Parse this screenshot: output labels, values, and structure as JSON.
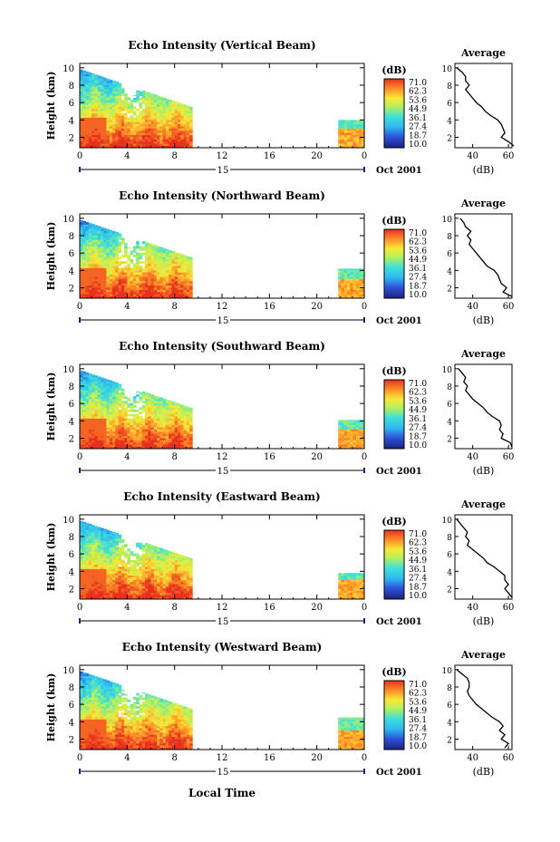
{
  "figure": {
    "panel_ylabel": "Height (km)",
    "x_axis_label": "Local Time",
    "date_label": "Oct 2001",
    "day_label": "15",
    "colorbar_unit": "(dB)",
    "colorbar_ticks": [
      "71.0",
      "62.3",
      "53.6",
      "44.9",
      "36.1",
      "27.4",
      "18.7",
      "10.0"
    ],
    "x_ticks": [
      "0",
      "4",
      "8",
      "12",
      "16",
      "20",
      "0"
    ],
    "y_ticks": [
      "10",
      "8",
      "6",
      "4",
      "2"
    ],
    "avg_title": "Average",
    "avg_xlabel": "(dB)",
    "avg_x_ticks": [
      "40",
      "60"
    ]
  },
  "chart_data": [
    {
      "type": "heatmap",
      "title": "Echo Intensity (Vertical Beam)",
      "xlabel": "Local Time",
      "ylabel": "Height (km)",
      "xlim": [
        0,
        24
      ],
      "ylim": [
        0.8,
        10.5
      ],
      "colorbar": {
        "label": "(dB)",
        "min": 10.0,
        "max": 71.0
      },
      "data_segments": [
        {
          "x": [
            0,
            9.5
          ],
          "top_km": 9.8
        },
        {
          "x": [
            21.8,
            24
          ],
          "top_km": 4.0
        }
      ],
      "average_profile": {
        "title": "Average",
        "xlabel": "(dB)",
        "xlim": [
          30,
          62
        ],
        "height_km": [
          10,
          9.5,
          9,
          8.5,
          8,
          7.5,
          7,
          6.5,
          6,
          5.5,
          5,
          4.5,
          4,
          3.5,
          3,
          2.5,
          2,
          1.5,
          1
        ],
        "db": [
          31,
          34,
          36,
          36,
          38,
          36,
          38,
          40,
          42,
          45,
          47,
          50,
          54,
          56,
          57,
          58,
          56,
          60,
          63
        ]
      }
    },
    {
      "type": "heatmap",
      "title": "Echo Intensity (Northward Beam)",
      "xlabel": "Local Time",
      "ylabel": "Height (km)",
      "xlim": [
        0,
        24
      ],
      "ylim": [
        0.8,
        10.5
      ],
      "colorbar": {
        "label": "(dB)",
        "min": 10.0,
        "max": 71.0
      },
      "data_segments": [
        {
          "x": [
            0,
            9.5
          ],
          "top_km": 9.8
        },
        {
          "x": [
            21.8,
            24
          ],
          "top_km": 4.2
        }
      ],
      "average_profile": {
        "title": "Average",
        "xlabel": "(dB)",
        "xlim": [
          30,
          62
        ],
        "height_km": [
          10,
          9.5,
          9,
          8.5,
          8,
          7.5,
          7,
          6.5,
          6,
          5.5,
          5,
          4.5,
          4,
          3.5,
          3,
          2.5,
          2,
          1.5,
          1
        ],
        "db": [
          33,
          35,
          36,
          39,
          37,
          39,
          38,
          40,
          42,
          44,
          46,
          48,
          52,
          54,
          55,
          56,
          59,
          57,
          62
        ]
      }
    },
    {
      "type": "heatmap",
      "title": "Echo Intensity (Southward Beam)",
      "xlabel": "Local Time",
      "ylabel": "Height (km)",
      "xlim": [
        0,
        24
      ],
      "ylim": [
        0.8,
        10.5
      ],
      "colorbar": {
        "label": "(dB)",
        "min": 10.0,
        "max": 71.0
      },
      "data_segments": [
        {
          "x": [
            0,
            9.5
          ],
          "top_km": 9.8
        },
        {
          "x": [
            21.8,
            24
          ],
          "top_km": 4.1
        }
      ],
      "average_profile": {
        "title": "Average",
        "xlabel": "(dB)",
        "xlim": [
          30,
          62
        ],
        "height_km": [
          10,
          9.5,
          9,
          8.5,
          8,
          7.5,
          7,
          6.5,
          6,
          5.5,
          5,
          4.5,
          4,
          3.5,
          3,
          2.5,
          2,
          1.5,
          1
        ],
        "db": [
          32,
          34,
          36,
          35,
          37,
          36,
          38,
          40,
          43,
          46,
          48,
          51,
          55,
          56,
          55,
          57,
          56,
          61,
          62
        ]
      }
    },
    {
      "type": "heatmap",
      "title": "Echo Intensity (Eastward Beam)",
      "xlabel": "Local Time",
      "ylabel": "Height (km)",
      "xlim": [
        0,
        24
      ],
      "ylim": [
        0.8,
        10.5
      ],
      "colorbar": {
        "label": "(dB)",
        "min": 10.0,
        "max": 71.0
      },
      "data_segments": [
        {
          "x": [
            0,
            9.5
          ],
          "top_km": 9.8
        },
        {
          "x": [
            21.8,
            24
          ],
          "top_km": 3.8
        }
      ],
      "average_profile": {
        "title": "Average",
        "xlabel": "(dB)",
        "xlim": [
          30,
          62
        ],
        "height_km": [
          10,
          9.5,
          9,
          8.5,
          8,
          7.5,
          7,
          6.5,
          6,
          5.5,
          5,
          4.5,
          4,
          3.5,
          3,
          2.5,
          2,
          1.5,
          1
        ],
        "db": [
          31,
          33,
          35,
          37,
          36,
          38,
          37,
          40,
          43,
          46,
          48,
          52,
          55,
          58,
          58,
          60,
          58,
          60,
          62
        ]
      }
    },
    {
      "type": "heatmap",
      "title": "Echo Intensity (Westward Beam)",
      "xlabel": "Local Time",
      "ylabel": "Height (km)",
      "xlim": [
        0,
        24
      ],
      "ylim": [
        0.8,
        10.5
      ],
      "colorbar": {
        "label": "(dB)",
        "min": 10.0,
        "max": 71.0
      },
      "data_segments": [
        {
          "x": [
            0,
            9.5
          ],
          "top_km": 9.8
        },
        {
          "x": [
            21.8,
            24
          ],
          "top_km": 4.5
        }
      ],
      "average_profile": {
        "title": "Average",
        "xlabel": "(dB)",
        "xlim": [
          30,
          62
        ],
        "height_km": [
          10,
          9.5,
          9,
          8.5,
          8,
          7.5,
          7,
          6.5,
          6,
          5.5,
          5,
          4.5,
          4,
          3.5,
          3,
          2.5,
          2,
          1.5,
          1
        ],
        "db": [
          31,
          34,
          37,
          38,
          38,
          37,
          38,
          40,
          42,
          45,
          48,
          51,
          55,
          57,
          55,
          58,
          56,
          60,
          58
        ]
      }
    }
  ]
}
